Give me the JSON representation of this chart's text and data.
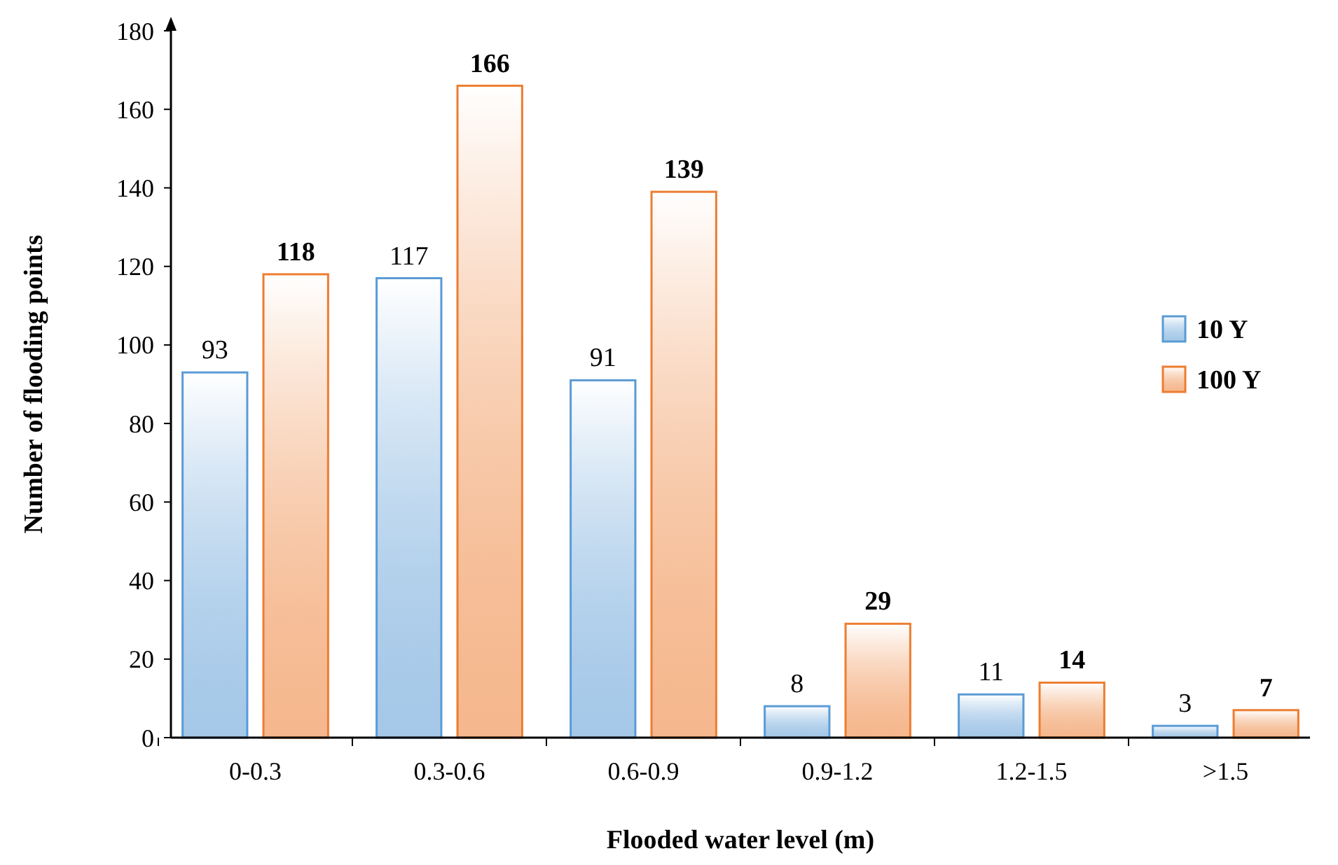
{
  "chart_data": {
    "type": "bar",
    "xlabel": "Flooded water level (m)",
    "ylabel": "Number of flooding points",
    "categories": [
      "0-0.3",
      "0.3-0.6",
      "0.6-0.9",
      "0.9-1.2",
      "1.2-1.5",
      ">1.5"
    ],
    "series": [
      {
        "name": "10 Y",
        "color": "#5b9bd5",
        "values": [
          93,
          117,
          91,
          8,
          11,
          3
        ]
      },
      {
        "name": "100 Y",
        "color": "#ed7d31",
        "values": [
          118,
          166,
          139,
          29,
          14,
          7
        ]
      }
    ],
    "ylim": [
      0,
      180
    ],
    "yticks": [
      0,
      20,
      40,
      60,
      80,
      100,
      120,
      140,
      160,
      180
    ],
    "grid": false,
    "legend": "right",
    "data_labels": true
  }
}
